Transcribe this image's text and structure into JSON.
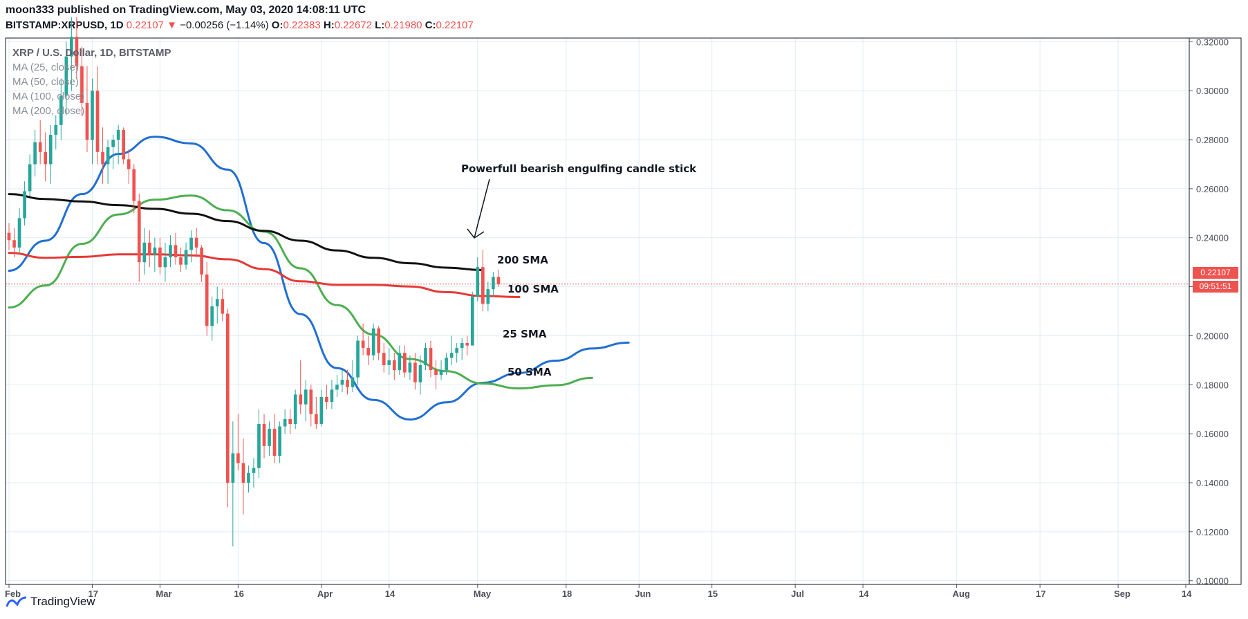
{
  "header": {
    "line1": "moon333 published on TradingView.com, May 03, 2020 14:08:11 UTC",
    "symbol": "BITSTAMP:XRPUSD, 1D",
    "last": "0.22107",
    "change_arrow": "▼",
    "change": "−0.00256 (−1.14%)",
    "o_label": "O:",
    "o_value": "0.22383",
    "h_label": "H:",
    "h_value": "0.22672",
    "l_label": "L:",
    "l_value": "0.21980",
    "c_label": "C:",
    "c_value": "0.22107"
  },
  "legend": {
    "symbol": "XRP / U.S. Dollar, 1D, BITSTAMP",
    "ma25": "MA (25, close)",
    "ma50": "MA (50, close)",
    "ma100": "MA (100, close)",
    "ma200": "MA (200, close)"
  },
  "annotations": {
    "engulfing": "Powerfull bearish engulfing candle stick",
    "sma200": "200 SMA",
    "sma100": "100 SMA",
    "sma25": "25 SMA",
    "sma50": "50 SMA"
  },
  "price_tag": {
    "value": "0.22107",
    "countdown": "09:51:51"
  },
  "footer": {
    "brand": "TradingView"
  },
  "colors": {
    "up": "#26a69a",
    "down": "#ef5350",
    "ma25": "#1f6fd1",
    "ma50": "#4caf50",
    "ma100": "#e53935",
    "ma200": "#111111",
    "grid": "#e1ecf2"
  },
  "chart_data": {
    "type": "candlestick",
    "y_ticks": [
      "0.32000",
      "0.30000",
      "0.28000",
      "0.26000",
      "0.24000",
      "0.22000",
      "0.20000",
      "0.18000",
      "0.16000",
      "0.14000",
      "0.12000",
      "0.10000"
    ],
    "ylim": [
      0.0985,
      0.3215
    ],
    "x_range": [
      "2020-02-01",
      "2020-09-14"
    ],
    "x_ticks": [
      {
        "label": "Feb",
        "date": "2020-02-01"
      },
      {
        "label": "17",
        "date": "2020-02-17"
      },
      {
        "label": "Mar",
        "date": "2020-03-01"
      },
      {
        "label": "16",
        "date": "2020-03-16"
      },
      {
        "label": "Apr",
        "date": "2020-04-01"
      },
      {
        "label": "14",
        "date": "2020-04-14"
      },
      {
        "label": "May",
        "date": "2020-05-01"
      },
      {
        "label": "18",
        "date": "2020-05-18"
      },
      {
        "label": "Jun",
        "date": "2020-06-01"
      },
      {
        "label": "15",
        "date": "2020-06-15"
      },
      {
        "label": "Jul",
        "date": "2020-07-01"
      },
      {
        "label": "14",
        "date": "2020-07-14"
      },
      {
        "label": "Aug",
        "date": "2020-08-01"
      },
      {
        "label": "17",
        "date": "2020-08-17"
      },
      {
        "label": "Sep",
        "date": "2020-09-01"
      },
      {
        "label": "14",
        "date": "2020-09-14"
      }
    ],
    "last_price": 0.22107,
    "candles": {
      "start_date": "2020-02-01",
      "columns": [
        "open",
        "high",
        "low",
        "close"
      ],
      "rows": [
        [
          0.242,
          0.246,
          0.235,
          0.239
        ],
        [
          0.239,
          0.244,
          0.232,
          0.236
        ],
        [
          0.236,
          0.252,
          0.234,
          0.248
        ],
        [
          0.248,
          0.263,
          0.245,
          0.259
        ],
        [
          0.259,
          0.274,
          0.257,
          0.27
        ],
        [
          0.27,
          0.284,
          0.265,
          0.279
        ],
        [
          0.279,
          0.288,
          0.27,
          0.275
        ],
        [
          0.275,
          0.283,
          0.263,
          0.27
        ],
        [
          0.27,
          0.286,
          0.262,
          0.282
        ],
        [
          0.282,
          0.29,
          0.276,
          0.286
        ],
        [
          0.286,
          0.305,
          0.28,
          0.298
        ],
        [
          0.298,
          0.32,
          0.29,
          0.314
        ],
        [
          0.314,
          0.33,
          0.3,
          0.322
        ],
        [
          0.322,
          0.33,
          0.305,
          0.31
        ],
        [
          0.31,
          0.318,
          0.29,
          0.295
        ],
        [
          0.295,
          0.31,
          0.275,
          0.28
        ],
        [
          0.28,
          0.305,
          0.27,
          0.3
        ],
        [
          0.3,
          0.31,
          0.27,
          0.275
        ],
        [
          0.275,
          0.285,
          0.262,
          0.27
        ],
        [
          0.27,
          0.28,
          0.262,
          0.277
        ],
        [
          0.277,
          0.282,
          0.268,
          0.28
        ],
        [
          0.28,
          0.286,
          0.27,
          0.284
        ],
        [
          0.284,
          0.285,
          0.27,
          0.272
        ],
        [
          0.272,
          0.276,
          0.262,
          0.268
        ],
        [
          0.268,
          0.27,
          0.25,
          0.255
        ],
        [
          0.255,
          0.258,
          0.222,
          0.23
        ],
        [
          0.23,
          0.244,
          0.225,
          0.238
        ],
        [
          0.238,
          0.243,
          0.228,
          0.233
        ],
        [
          0.233,
          0.24,
          0.226,
          0.236
        ],
        [
          0.236,
          0.24,
          0.225,
          0.228
        ],
        [
          0.228,
          0.238,
          0.222,
          0.232
        ],
        [
          0.232,
          0.241,
          0.228,
          0.237
        ],
        [
          0.237,
          0.242,
          0.229,
          0.232
        ],
        [
          0.232,
          0.236,
          0.226,
          0.229
        ],
        [
          0.229,
          0.238,
          0.227,
          0.235
        ],
        [
          0.235,
          0.243,
          0.23,
          0.24
        ],
        [
          0.24,
          0.244,
          0.232,
          0.236
        ],
        [
          0.236,
          0.237,
          0.222,
          0.225
        ],
        [
          0.225,
          0.23,
          0.2,
          0.204
        ],
        [
          0.204,
          0.216,
          0.198,
          0.212
        ],
        [
          0.212,
          0.22,
          0.205,
          0.215
        ],
        [
          0.215,
          0.219,
          0.206,
          0.209
        ],
        [
          0.209,
          0.211,
          0.13,
          0.14
        ],
        [
          0.14,
          0.165,
          0.114,
          0.152
        ],
        [
          0.152,
          0.168,
          0.145,
          0.148
        ],
        [
          0.148,
          0.158,
          0.127,
          0.14
        ],
        [
          0.14,
          0.147,
          0.136,
          0.144
        ],
        [
          0.144,
          0.15,
          0.138,
          0.146
        ],
        [
          0.146,
          0.17,
          0.142,
          0.164
        ],
        [
          0.164,
          0.168,
          0.15,
          0.155
        ],
        [
          0.155,
          0.165,
          0.151,
          0.162
        ],
        [
          0.162,
          0.168,
          0.148,
          0.151
        ],
        [
          0.151,
          0.165,
          0.148,
          0.163
        ],
        [
          0.163,
          0.17,
          0.16,
          0.166
        ],
        [
          0.166,
          0.17,
          0.16,
          0.164
        ],
        [
          0.164,
          0.178,
          0.162,
          0.176
        ],
        [
          0.176,
          0.19,
          0.168,
          0.172
        ],
        [
          0.172,
          0.182,
          0.165,
          0.178
        ],
        [
          0.178,
          0.18,
          0.163,
          0.168
        ],
        [
          0.168,
          0.175,
          0.162,
          0.164
        ],
        [
          0.164,
          0.178,
          0.163,
          0.175
        ],
        [
          0.175,
          0.18,
          0.17,
          0.173
        ],
        [
          0.173,
          0.182,
          0.17,
          0.178
        ],
        [
          0.178,
          0.184,
          0.175,
          0.18
        ],
        [
          0.18,
          0.186,
          0.177,
          0.182
        ],
        [
          0.182,
          0.186,
          0.176,
          0.179
        ],
        [
          0.179,
          0.19,
          0.177,
          0.183
        ],
        [
          0.183,
          0.2,
          0.18,
          0.198
        ],
        [
          0.198,
          0.205,
          0.192,
          0.195
        ],
        [
          0.195,
          0.2,
          0.188,
          0.192
        ],
        [
          0.192,
          0.205,
          0.19,
          0.203
        ],
        [
          0.203,
          0.204,
          0.19,
          0.193
        ],
        [
          0.193,
          0.197,
          0.185,
          0.188
        ],
        [
          0.188,
          0.195,
          0.184,
          0.19
        ],
        [
          0.19,
          0.193,
          0.182,
          0.186
        ],
        [
          0.186,
          0.196,
          0.184,
          0.193
        ],
        [
          0.193,
          0.196,
          0.183,
          0.185
        ],
        [
          0.185,
          0.192,
          0.182,
          0.189
        ],
        [
          0.189,
          0.193,
          0.178,
          0.181
        ],
        [
          0.181,
          0.192,
          0.176,
          0.188
        ],
        [
          0.188,
          0.197,
          0.186,
          0.195
        ],
        [
          0.195,
          0.198,
          0.183,
          0.186
        ],
        [
          0.186,
          0.19,
          0.178,
          0.184
        ],
        [
          0.184,
          0.19,
          0.182,
          0.186
        ],
        [
          0.186,
          0.193,
          0.184,
          0.191
        ],
        [
          0.191,
          0.2,
          0.188,
          0.193
        ],
        [
          0.193,
          0.197,
          0.189,
          0.195
        ],
        [
          0.195,
          0.199,
          0.19,
          0.197
        ],
        [
          0.197,
          0.2,
          0.192,
          0.196
        ],
        [
          0.196,
          0.218,
          0.196,
          0.216
        ],
        [
          0.216,
          0.232,
          0.214,
          0.228
        ],
        [
          0.228,
          0.235,
          0.21,
          0.213
        ],
        [
          0.213,
          0.222,
          0.21,
          0.219
        ],
        [
          0.219,
          0.226,
          0.216,
          0.224
        ],
        [
          0.224,
          0.227,
          0.22,
          0.221
        ]
      ]
    },
    "series": [
      {
        "name": "MA (25, close)",
        "start_date": "2020-02-01",
        "step_days": 7,
        "values": [
          0.2265,
          0.2388,
          0.2578,
          0.2742,
          0.2812,
          0.2785,
          0.2678,
          0.2378,
          0.2088,
          0.1868,
          0.1738,
          0.1658,
          0.1728,
          0.1808,
          0.1848,
          0.1898,
          0.1948,
          0.1972
        ]
      },
      {
        "name": "MA (50, close)",
        "start_date": "2020-02-01",
        "step_days": 7,
        "values": [
          0.2115,
          0.2205,
          0.2375,
          0.2495,
          0.2555,
          0.2572,
          0.2512,
          0.2425,
          0.2275,
          0.2125,
          0.2005,
          0.1905,
          0.1855,
          0.1805,
          0.1785,
          0.1798,
          0.1828
        ]
      },
      {
        "name": "MA (100, close)",
        "start_date": "2020-02-01",
        "step_days": 7,
        "values": [
          0.2338,
          0.2318,
          0.2322,
          0.2332,
          0.2332,
          0.2328,
          0.2312,
          0.2272,
          0.2222,
          0.2208,
          0.2208,
          0.2201,
          0.2178,
          0.2162,
          0.2158
        ]
      },
      {
        "name": "MA (200, close)",
        "start_date": "2020-02-01",
        "step_days": 7,
        "values": [
          0.2578,
          0.2558,
          0.2548,
          0.2533,
          0.2518,
          0.2498,
          0.2468,
          0.2428,
          0.2388,
          0.2348,
          0.2318,
          0.2296,
          0.2278,
          0.2268
        ]
      }
    ]
  }
}
